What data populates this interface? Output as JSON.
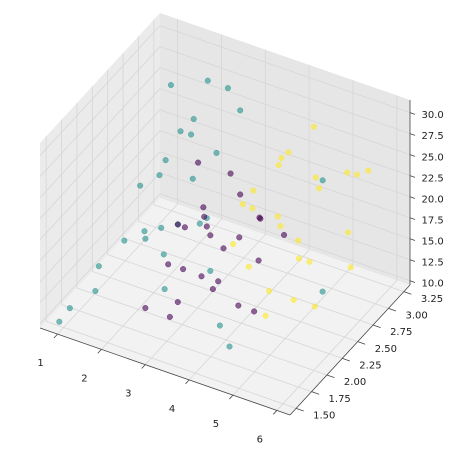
{
  "chart_data": {
    "type": "scatter3d",
    "xlim": [
      0.6,
      6.3
    ],
    "ylim": [
      1.4,
      3.35
    ],
    "zlim": [
      9.5,
      31.5
    ],
    "xticks": [
      1,
      2,
      3,
      4,
      5,
      6
    ],
    "yticks": [
      {
        "value": 1.5,
        "label": "1.50"
      },
      {
        "value": 1.75,
        "label": "1.75"
      },
      {
        "value": 2.0,
        "label": "2.00"
      },
      {
        "value": 2.25,
        "label": "2.25"
      },
      {
        "value": 2.5,
        "label": "2.50"
      },
      {
        "value": 2.75,
        "label": "2.75"
      },
      {
        "value": 3.0,
        "label": "3.00"
      },
      {
        "value": 3.25,
        "label": "3.25"
      }
    ],
    "zticks": [
      {
        "value": 10,
        "label": "10.0"
      },
      {
        "value": 12.5,
        "label": "12.5"
      },
      {
        "value": 15,
        "label": "15.0"
      },
      {
        "value": 17.5,
        "label": "17.5"
      },
      {
        "value": 20,
        "label": "20.0"
      },
      {
        "value": 22.5,
        "label": "22.5"
      },
      {
        "value": 25,
        "label": "25.0"
      },
      {
        "value": 27.5,
        "label": "27.5"
      },
      {
        "value": 30,
        "label": "30.0"
      }
    ],
    "grid": true,
    "alpha": 0.6,
    "series": [
      {
        "color": "#21918c",
        "x": [
          1.2,
          1.5,
          1.8,
          2.0,
          2.2,
          1.4,
          1.6,
          2.5,
          2.8,
          1.1,
          1.3,
          2.1,
          2.4,
          1.7,
          3.0,
          3.5,
          4.0,
          1.9,
          2.3,
          1.0,
          5.5,
          4.8,
          2.6,
          1.5,
          3.2,
          2.0,
          1.2,
          4.5,
          2.7,
          0.9
        ],
        "y": [
          2.6,
          2.8,
          3.0,
          2.9,
          2.5,
          2.2,
          2.4,
          3.1,
          2.7,
          2.0,
          1.8,
          2.3,
          2.6,
          2.9,
          2.4,
          2.1,
          1.9,
          3.2,
          2.2,
          1.6,
          2.5,
          3.0,
          2.0,
          2.7,
          2.8,
          2.1,
          3.1,
          1.7,
          2.5,
          1.5
        ],
        "z": [
          18,
          20,
          22,
          25,
          16,
          15,
          14,
          28,
          24,
          13,
          12,
          17,
          21,
          23,
          19,
          16,
          12,
          27,
          15,
          11,
          14,
          22,
          13,
          19,
          29,
          18,
          26,
          12,
          17,
          10
        ]
      },
      {
        "color": "#440154",
        "x": [
          2.2,
          2.5,
          2.8,
          3.0,
          3.2,
          3.5,
          2.4,
          2.6,
          2.9,
          3.3,
          3.6,
          3.8,
          2.1,
          2.7,
          3.1,
          3.4,
          4.0,
          4.2,
          2.3,
          3.0,
          2.5,
          3.7,
          2.8,
          3.9,
          4.5
        ],
        "y": [
          2.5,
          2.7,
          2.6,
          2.4,
          2.8,
          2.9,
          2.2,
          2.3,
          2.0,
          2.1,
          2.5,
          2.7,
          2.9,
          3.0,
          2.6,
          2.3,
          2.2,
          2.8,
          1.9,
          1.8,
          2.4,
          2.0,
          2.5,
          2.6,
          2.1
        ],
        "z": [
          16,
          17,
          15,
          18,
          19,
          16,
          14,
          13,
          12,
          15,
          17,
          18,
          20,
          19,
          14,
          13,
          12,
          16,
          11,
          12,
          17,
          15,
          18,
          14,
          13
        ]
      },
      {
        "color": "#fde725",
        "x": [
          3.5,
          3.8,
          4.0,
          4.2,
          4.5,
          4.8,
          5.0,
          5.2,
          5.5,
          5.8,
          3.6,
          4.1,
          4.4,
          4.7,
          5.1,
          5.4,
          3.9,
          4.3,
          4.6,
          5.3,
          5.6,
          6.0,
          3.4,
          4.9,
          5.7
        ],
        "y": [
          2.8,
          3.0,
          2.9,
          2.7,
          3.1,
          2.6,
          2.8,
          2.5,
          2.9,
          2.7,
          2.4,
          2.3,
          2.6,
          2.2,
          2.4,
          2.1,
          2.5,
          2.8,
          3.0,
          3.2,
          2.3,
          2.6,
          2.7,
          2.0,
          3.1
        ],
        "z": [
          20,
          22,
          24,
          19,
          21,
          18,
          23,
          17,
          25,
          20,
          17,
          16,
          19,
          15,
          18,
          16,
          21,
          26,
          28,
          22,
          14,
          17,
          19,
          14,
          24
        ]
      }
    ]
  }
}
